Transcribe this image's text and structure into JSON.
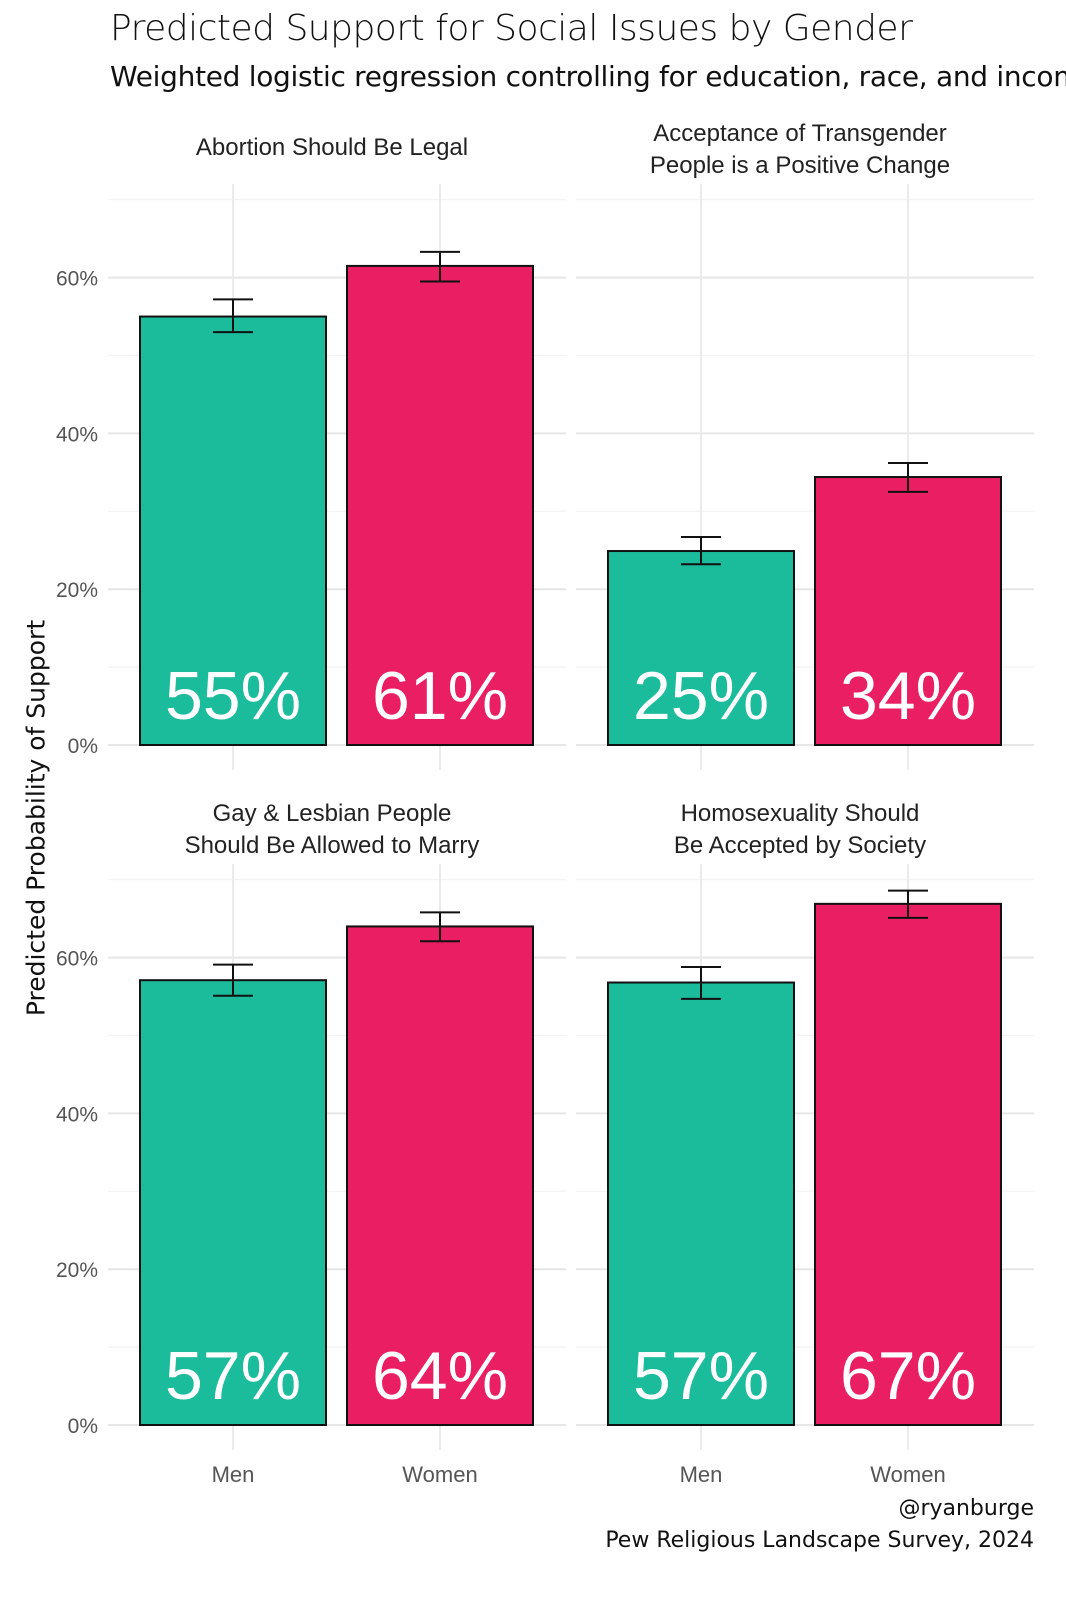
{
  "chart_data": {
    "type": "bar",
    "title": "Predicted Support for Social Issues by Gender",
    "subtitle": "Weighted logistic regression controlling for education, race, and income",
    "ylabel": "Predicted Probability of Support",
    "xlabel": "",
    "caption_line1": "@ryanburge",
    "caption_line2": "Pew Religious Landscape Survey, 2024",
    "categories": [
      "Men",
      "Women"
    ],
    "ylim": [
      0,
      0.72
    ],
    "yticks": [
      0,
      0.2,
      0.4,
      0.6
    ],
    "ytick_labels": [
      "0%",
      "20%",
      "40%",
      "60%"
    ],
    "colors": {
      "Men": "#1ABC9C",
      "Women": "#E91E63"
    },
    "panels": [
      {
        "title_lines": [
          "Abortion Should Be Legal"
        ],
        "values": [
          0.55,
          0.615
        ],
        "ci_low": [
          0.53,
          0.595
        ],
        "ci_high": [
          0.572,
          0.633
        ],
        "labels": [
          "55%",
          "61%"
        ]
      },
      {
        "title_lines": [
          "Acceptance of Transgender",
          "People is a Positive Change"
        ],
        "values": [
          0.249,
          0.344
        ],
        "ci_low": [
          0.232,
          0.325
        ],
        "ci_high": [
          0.267,
          0.362
        ],
        "labels": [
          "25%",
          "34%"
        ]
      },
      {
        "title_lines": [
          "Gay & Lesbian People",
          "Should Be Allowed to Marry"
        ],
        "values": [
          0.571,
          0.64
        ],
        "ci_low": [
          0.551,
          0.621
        ],
        "ci_high": [
          0.591,
          0.658
        ],
        "labels": [
          "57%",
          "64%"
        ]
      },
      {
        "title_lines": [
          "Homosexuality Should",
          "Be Accepted by Society"
        ],
        "values": [
          0.568,
          0.669
        ],
        "ci_low": [
          0.547,
          0.651
        ],
        "ci_high": [
          0.588,
          0.686
        ],
        "labels": [
          "57%",
          "67%"
        ]
      }
    ]
  }
}
